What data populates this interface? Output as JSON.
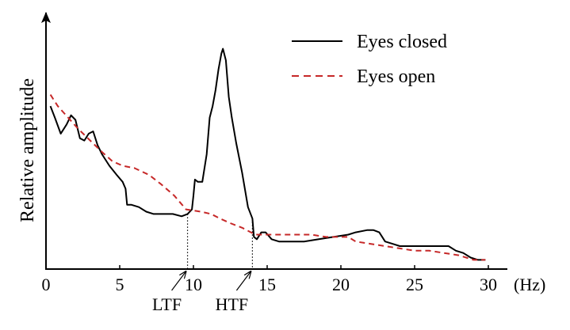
{
  "chart_data": {
    "type": "line",
    "ylabel": "Relative amplitude",
    "xlabel": "",
    "x_unit": "(Hz)",
    "xlim": [
      0,
      30
    ],
    "ylim": [
      0,
      1
    ],
    "x_ticks": [
      {
        "value": 0,
        "label": "0"
      },
      {
        "value": 5,
        "label": "5"
      },
      {
        "value": 10,
        "label": "10"
      },
      {
        "value": 15,
        "label": "15"
      },
      {
        "value": 20,
        "label": "20"
      },
      {
        "value": 25,
        "label": "25"
      },
      {
        "value": 30,
        "label": "30"
      }
    ],
    "grid": false,
    "legend_position": "top-right",
    "series": [
      {
        "name": "Eyes closed",
        "color": "#000000",
        "style": "solid",
        "x": [
          0.3,
          0.6,
          1.0,
          1.4,
          1.7,
          2.0,
          2.3,
          2.6,
          2.9,
          3.2,
          3.5,
          3.8,
          4.3,
          4.8,
          5.2,
          5.4,
          5.5,
          5.8,
          6.3,
          6.8,
          7.3,
          8.0,
          8.6,
          9.2,
          9.6,
          9.9,
          10.0,
          10.1,
          10.3,
          10.6,
          10.9,
          11.1,
          11.3,
          11.5,
          11.7,
          11.9,
          12.0,
          12.2,
          12.4,
          12.6,
          12.9,
          13.3,
          13.7,
          14.0,
          14.1,
          14.3,
          14.6,
          14.9,
          15.3,
          15.8,
          16.5,
          17.5,
          18.5,
          19.5,
          20.5,
          21.0,
          21.8,
          22.2,
          22.6,
          23.0,
          23.5,
          24.0,
          25.0,
          26.0,
          26.8,
          27.3,
          27.8,
          28.3,
          28.8,
          29.3,
          29.8
        ],
        "values": [
          0.71,
          0.66,
          0.59,
          0.63,
          0.67,
          0.65,
          0.57,
          0.56,
          0.59,
          0.6,
          0.54,
          0.5,
          0.45,
          0.41,
          0.38,
          0.35,
          0.28,
          0.28,
          0.27,
          0.25,
          0.24,
          0.24,
          0.24,
          0.23,
          0.24,
          0.26,
          0.32,
          0.39,
          0.38,
          0.38,
          0.5,
          0.66,
          0.71,
          0.78,
          0.87,
          0.94,
          0.96,
          0.91,
          0.75,
          0.66,
          0.55,
          0.42,
          0.27,
          0.22,
          0.14,
          0.13,
          0.16,
          0.16,
          0.13,
          0.12,
          0.12,
          0.12,
          0.13,
          0.14,
          0.15,
          0.16,
          0.17,
          0.17,
          0.16,
          0.12,
          0.11,
          0.1,
          0.1,
          0.1,
          0.1,
          0.1,
          0.08,
          0.07,
          0.05,
          0.04,
          0.04
        ]
      },
      {
        "name": "Eyes open",
        "color": "#c62828",
        "style": "dashed",
        "x": [
          0.3,
          0.8,
          1.5,
          2.2,
          3.0,
          3.8,
          4.5,
          5.2,
          6.0,
          7.0,
          7.8,
          8.7,
          9.5,
          10.5,
          11.2,
          11.8,
          12.5,
          13.3,
          14.2,
          15.0,
          16.0,
          17.0,
          18.0,
          19.0,
          20.0,
          20.5,
          21.0,
          22.0,
          23.0,
          24.0,
          25.0,
          26.0,
          27.0,
          28.0,
          29.0,
          29.8
        ],
        "values": [
          0.76,
          0.71,
          0.66,
          0.61,
          0.56,
          0.51,
          0.47,
          0.45,
          0.44,
          0.41,
          0.37,
          0.32,
          0.26,
          0.25,
          0.24,
          0.22,
          0.2,
          0.18,
          0.15,
          0.15,
          0.15,
          0.15,
          0.15,
          0.14,
          0.14,
          0.14,
          0.12,
          0.11,
          0.1,
          0.09,
          0.08,
          0.08,
          0.07,
          0.06,
          0.04,
          0.04
        ]
      }
    ],
    "annotations": [
      {
        "label": "LTF",
        "x": 9.6
      },
      {
        "label": "HTF",
        "x": 14.0
      }
    ]
  }
}
